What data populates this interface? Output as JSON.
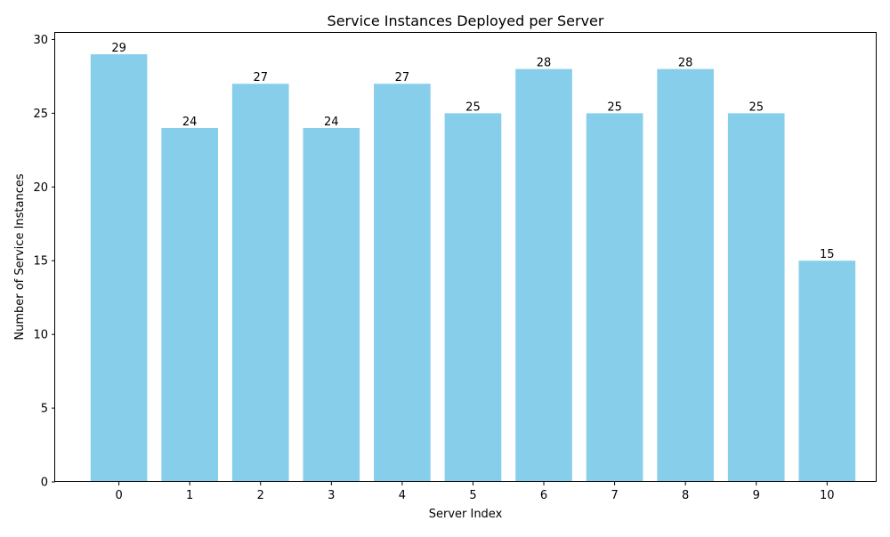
{
  "chart_data": {
    "type": "bar",
    "title": "Service Instances Deployed per Server",
    "xlabel": "Server Index",
    "ylabel": "Number of Service Instances",
    "categories": [
      "0",
      "1",
      "2",
      "3",
      "4",
      "5",
      "6",
      "7",
      "8",
      "9",
      "10"
    ],
    "values": [
      29,
      24,
      27,
      24,
      27,
      25,
      28,
      25,
      28,
      25,
      15
    ],
    "ylim": [
      0,
      30.45
    ],
    "yticks": [
      0,
      5,
      10,
      15,
      20,
      25,
      30
    ],
    "bar_color": "#87ceeb",
    "grid": false,
    "data_labels": true
  }
}
